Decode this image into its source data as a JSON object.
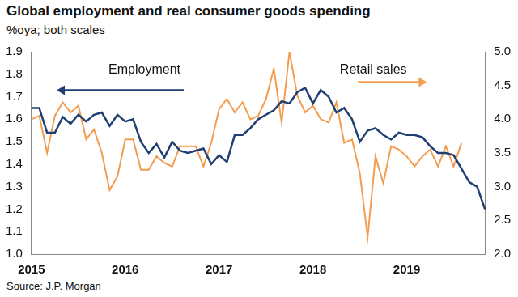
{
  "chart_data": {
    "type": "line",
    "title": "Global employment and real consumer goods spending",
    "subtitle": "%oya; both scales",
    "source": "Source: J.P. Morgan",
    "categories": [
      "2015",
      null,
      null,
      null,
      null,
      null,
      null,
      null,
      null,
      null,
      null,
      null,
      "2016",
      null,
      null,
      null,
      null,
      null,
      null,
      null,
      null,
      null,
      null,
      null,
      "2017",
      null,
      null,
      null,
      null,
      null,
      null,
      null,
      null,
      null,
      null,
      null,
      "2018",
      null,
      null,
      null,
      null,
      null,
      null,
      null,
      null,
      null,
      null,
      null,
      "2019",
      null,
      null,
      null,
      null,
      null,
      null,
      null,
      null,
      null,
      null
    ],
    "series": [
      {
        "name": "Employment",
        "color": "#1f3f73",
        "axis": "y",
        "values": [
          1.65,
          1.65,
          1.54,
          1.54,
          1.61,
          1.58,
          1.62,
          1.59,
          1.62,
          1.63,
          1.57,
          1.62,
          1.59,
          1.6,
          1.5,
          1.45,
          1.49,
          1.43,
          1.5,
          1.46,
          1.45,
          1.46,
          1.47,
          1.4,
          1.44,
          1.41,
          1.53,
          1.53,
          1.56,
          1.6,
          1.62,
          1.64,
          1.68,
          1.67,
          1.72,
          1.74,
          1.67,
          1.73,
          1.7,
          1.63,
          1.65,
          1.6,
          1.5,
          1.55,
          1.56,
          1.53,
          1.51,
          1.54,
          1.53,
          1.53,
          1.52,
          1.48,
          1.45,
          1.45,
          1.44,
          1.38,
          1.32,
          1.3,
          1.2
        ]
      },
      {
        "name": "Retail sales",
        "color": "#f39c4e",
        "axis": "y2",
        "values": [
          4.0,
          4.05,
          3.5,
          4.05,
          4.25,
          4.1,
          4.2,
          3.7,
          3.85,
          3.5,
          2.95,
          3.15,
          3.7,
          3.7,
          3.25,
          3.25,
          3.45,
          3.35,
          3.3,
          3.6,
          3.6,
          3.6,
          3.3,
          3.65,
          4.15,
          4.3,
          4.1,
          4.25,
          4.0,
          4.05,
          4.3,
          4.75,
          3.95,
          5.0,
          4.35,
          4.1,
          4.2,
          4.0,
          3.95,
          4.25,
          3.65,
          3.7,
          3.2,
          2.25,
          3.45,
          3.05,
          3.6,
          3.55,
          3.45,
          3.3,
          3.45,
          3.55,
          3.3,
          3.6,
          3.3,
          3.65,
          null,
          null,
          null
        ]
      }
    ],
    "ylim": [
      1.0,
      1.9
    ],
    "yticks": [
      {
        "value": 1.0,
        "label": "1.0"
      },
      {
        "value": 1.1,
        "label": "1.1"
      },
      {
        "value": 1.2,
        "label": "1.2"
      },
      {
        "value": 1.3,
        "label": "1.3"
      },
      {
        "value": 1.4,
        "label": "1.4"
      },
      {
        "value": 1.5,
        "label": "1.5"
      },
      {
        "value": 1.6,
        "label": "1.6"
      },
      {
        "value": 1.7,
        "label": "1.7"
      },
      {
        "value": 1.8,
        "label": "1.8"
      },
      {
        "value": 1.9,
        "label": "1.9"
      }
    ],
    "y2lim": [
      2.0,
      5.0
    ],
    "y2ticks": [
      {
        "value": 2.0,
        "label": "2.0"
      },
      {
        "value": 2.5,
        "label": "2.5"
      },
      {
        "value": 3.0,
        "label": "3.0"
      },
      {
        "value": 3.5,
        "label": "3.5"
      },
      {
        "value": 4.0,
        "label": "4.0"
      },
      {
        "value": 4.5,
        "label": "4.5"
      },
      {
        "value": 5.0,
        "label": "5.0"
      }
    ],
    "grid": false
  }
}
